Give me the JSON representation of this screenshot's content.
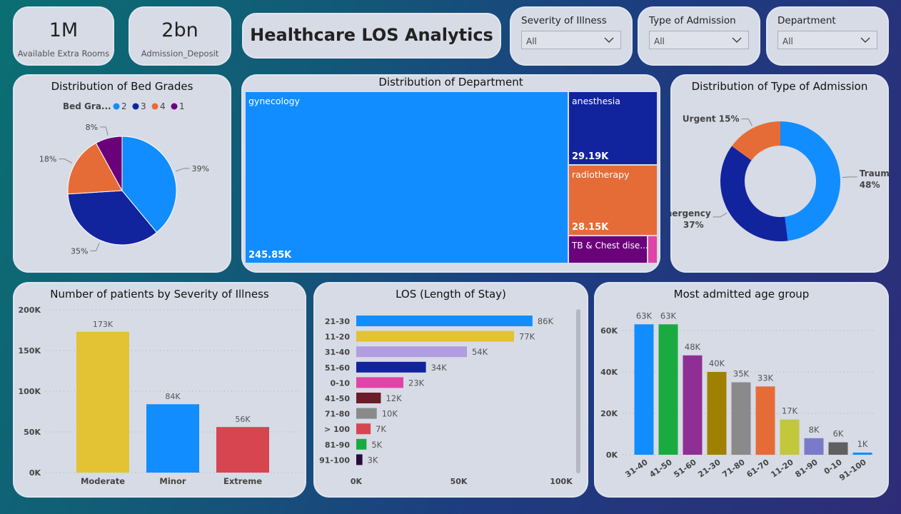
{
  "kpis": [
    {
      "value": "1M",
      "label": "Available Extra Rooms"
    },
    {
      "value": "2bn",
      "label": "Admission_Deposit"
    }
  ],
  "title": "Healthcare LOS Analytics",
  "filters": [
    {
      "label": "Severity of Illness",
      "value": "All"
    },
    {
      "label": "Type of Admission",
      "value": "All"
    },
    {
      "label": "Department",
      "value": "All"
    }
  ],
  "colors": {
    "blue": "#118dff",
    "navy": "#12239e",
    "orange": "#e66c37",
    "purple": "#6b007b",
    "magenta": "#e044a7"
  },
  "chart_data": [
    {
      "type": "pie",
      "title": "Distribution of Bed Grades",
      "legend_title": "Bed Gra...",
      "legend_position": "top",
      "slices": [
        {
          "name": "2",
          "value": 39,
          "label": "39%",
          "color": "#118dff"
        },
        {
          "name": "3",
          "value": 35,
          "label": "35%",
          "color": "#12239e"
        },
        {
          "name": "4",
          "value": 18,
          "label": "18%",
          "color": "#e66c37"
        },
        {
          "name": "1",
          "value": 8,
          "label": "8%",
          "color": "#6b007b"
        }
      ]
    },
    {
      "type": "treemap",
      "title": "Distribution of Department",
      "items": [
        {
          "name": "gynecology",
          "value": 245.85,
          "label": "245.85K",
          "color": "#118dff"
        },
        {
          "name": "anesthesia",
          "value": 29.19,
          "label": "29.19K",
          "color": "#12239e"
        },
        {
          "name": "radiotherapy",
          "value": 28.15,
          "label": "28.15K",
          "color": "#e66c37"
        },
        {
          "name": "TB & Chest dise...",
          "value": null,
          "label": "",
          "color": "#6b007b"
        },
        {
          "name": "",
          "value": null,
          "label": "",
          "color": "#e044a7"
        }
      ]
    },
    {
      "type": "donut",
      "title": "Distribution of Type of Admission",
      "slices": [
        {
          "name": "Trauma",
          "value": 48,
          "label": "48%",
          "color": "#118dff"
        },
        {
          "name": "Emergency",
          "value": 37,
          "label": "37%",
          "color": "#12239e"
        },
        {
          "name": "Urgent",
          "value": 15,
          "label": "15%",
          "color": "#e66c37"
        }
      ]
    },
    {
      "type": "bar",
      "title": "Number of patients by Severity of Illness",
      "categories": [
        "Moderate",
        "Minor",
        "Extreme"
      ],
      "values": [
        173,
        84,
        56
      ],
      "data_labels": [
        "173K",
        "84K",
        "56K"
      ],
      "colors": [
        "#e3c233",
        "#118dff",
        "#d64550"
      ],
      "yticks": [
        "0K",
        "50K",
        "100K",
        "150K",
        "200K"
      ],
      "ylim": [
        0,
        200
      ]
    },
    {
      "type": "bar",
      "orientation": "horizontal",
      "title": "LOS (Length of Stay)",
      "categories": [
        "21-30",
        "11-20",
        "31-40",
        "51-60",
        "0-10",
        "41-50",
        "71-80",
        "> 100",
        "81-90",
        "91-100"
      ],
      "values": [
        86,
        77,
        54,
        34,
        23,
        12,
        10,
        7,
        5,
        3
      ],
      "data_labels": [
        "86K",
        "77K",
        "54K",
        "34K",
        "23K",
        "12K",
        "10K",
        "7K",
        "5K",
        "3K"
      ],
      "colors": [
        "#118dff",
        "#e3c233",
        "#b19ddf",
        "#12239e",
        "#e044a7",
        "#6b1d2a",
        "#8a8a8a",
        "#d64550",
        "#1aab40",
        "#2b0a3d"
      ],
      "xticks": [
        "0K",
        "50K",
        "100K"
      ],
      "xlim": [
        0,
        100
      ]
    },
    {
      "type": "bar",
      "title": "Most admitted age group",
      "categories": [
        "31-40",
        "41-50",
        "51-60",
        "21-30",
        "71-80",
        "61-70",
        "11-20",
        "81-90",
        "0-10",
        "91-100"
      ],
      "values": [
        63,
        63,
        48,
        40,
        35,
        33,
        17,
        8,
        6,
        1
      ],
      "data_labels": [
        "63K",
        "63K",
        "48K",
        "40K",
        "35K",
        "33K",
        "17K",
        "8K",
        "6K",
        "1K"
      ],
      "colors": [
        "#118dff",
        "#1aab40",
        "#8f2f96",
        "#a08000",
        "#8a8a8a",
        "#e66c37",
        "#c2c73b",
        "#7a7ac8",
        "#606060",
        "#118dff"
      ],
      "yticks": [
        "0K",
        "20K",
        "40K",
        "60K"
      ],
      "ylim": [
        0,
        70
      ]
    }
  ]
}
